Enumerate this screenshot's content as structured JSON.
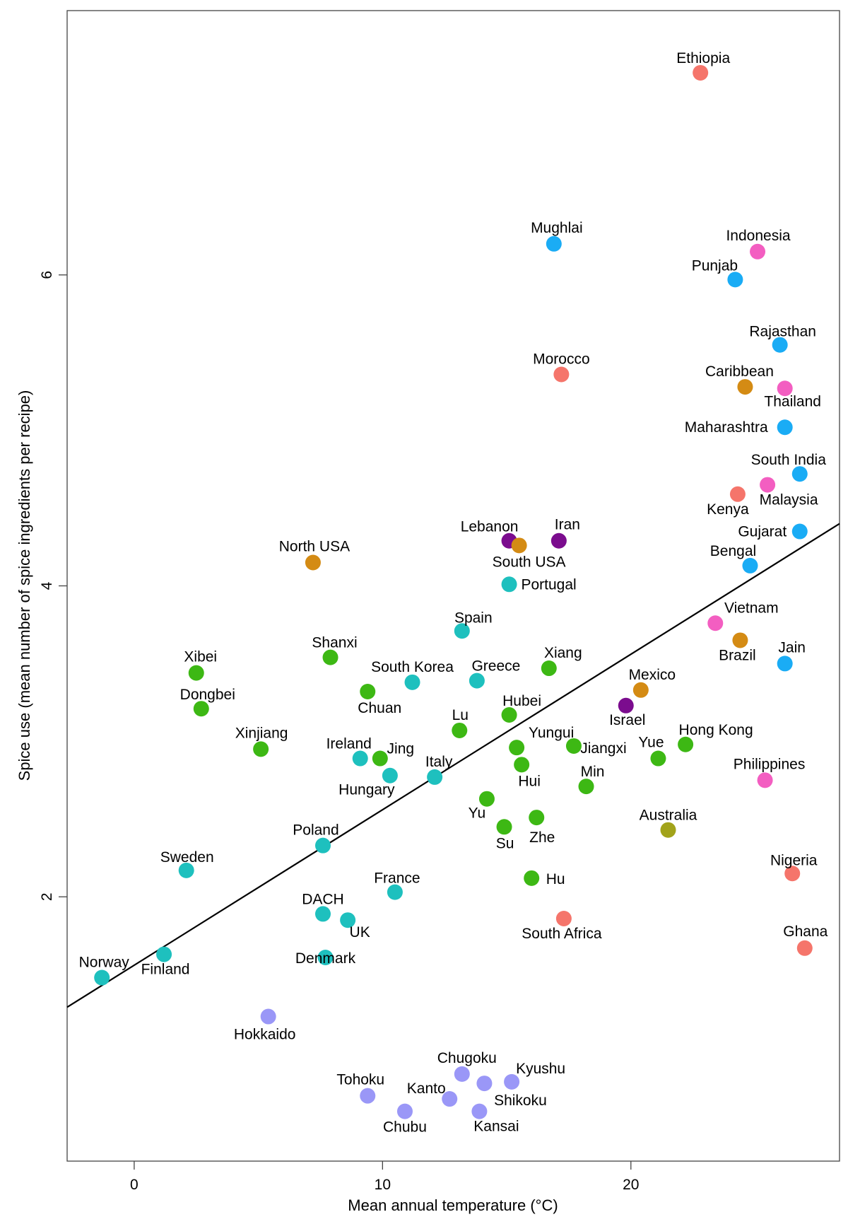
{
  "chart_data": {
    "type": "scatter",
    "title": "",
    "xlabel": "Mean annual temperature (°C)",
    "ylabel": "Spice use (mean number of spice ingredients per recipe)",
    "xlim": [
      -2.7,
      28.4
    ],
    "ylim": [
      0.3,
      7.7
    ],
    "xticks": [
      0,
      10,
      20
    ],
    "yticks": [
      2,
      4,
      6
    ],
    "grid": false,
    "legend": "none",
    "regression_line": {
      "x": [
        -2.7,
        28.4
      ],
      "y": [
        1.29,
        4.4
      ]
    },
    "colors": {
      "african": "#F5756B",
      "south_asian": "#1AACF5",
      "southeast_asian": "#F35EC1",
      "american": "#D48B14",
      "middle_eastern": "#7B0C8E",
      "european": "#1EC0BE",
      "chinese": "#3DB814",
      "japanese": "#9A97F7",
      "oceanian": "#A2A31A"
    },
    "points": [
      {
        "name": "Ethiopia",
        "x": 22.8,
        "y": 7.3,
        "color": "african"
      },
      {
        "name": "Mughlai",
        "x": 16.9,
        "y": 6.2,
        "color": "south_asian"
      },
      {
        "name": "Indonesia",
        "x": 25.1,
        "y": 6.15,
        "color": "southeast_asian"
      },
      {
        "name": "Punjab",
        "x": 24.2,
        "y": 5.97,
        "color": "south_asian"
      },
      {
        "name": "Rajasthan",
        "x": 26.0,
        "y": 5.55,
        "color": "south_asian"
      },
      {
        "name": "Morocco",
        "x": 17.2,
        "y": 5.36,
        "color": "african"
      },
      {
        "name": "Caribbean",
        "x": 24.6,
        "y": 5.28,
        "color": "american"
      },
      {
        "name": "Thailand",
        "x": 26.2,
        "y": 5.27,
        "color": "southeast_asian"
      },
      {
        "name": "Maharashtra",
        "x": 26.2,
        "y": 5.02,
        "color": "south_asian"
      },
      {
        "name": "South India",
        "x": 26.8,
        "y": 4.72,
        "color": "south_asian"
      },
      {
        "name": "Malaysia",
        "x": 25.5,
        "y": 4.65,
        "color": "southeast_asian"
      },
      {
        "name": "Kenya",
        "x": 24.3,
        "y": 4.59,
        "color": "african"
      },
      {
        "name": "Gujarat",
        "x": 26.8,
        "y": 4.35,
        "color": "south_asian"
      },
      {
        "name": "Lebanon",
        "x": 15.1,
        "y": 4.29,
        "color": "middle_eastern"
      },
      {
        "name": "Iran",
        "x": 17.1,
        "y": 4.29,
        "color": "middle_eastern"
      },
      {
        "name": "South USA",
        "x": 15.5,
        "y": 4.26,
        "color": "american"
      },
      {
        "name": "North USA",
        "x": 7.2,
        "y": 4.15,
        "color": "american"
      },
      {
        "name": "Bengal",
        "x": 24.8,
        "y": 4.13,
        "color": "south_asian"
      },
      {
        "name": "Portugal",
        "x": 15.1,
        "y": 4.01,
        "color": "european"
      },
      {
        "name": "Vietnam",
        "x": 23.4,
        "y": 3.76,
        "color": "southeast_asian"
      },
      {
        "name": "Spain",
        "x": 13.2,
        "y": 3.71,
        "color": "european"
      },
      {
        "name": "Brazil",
        "x": 24.4,
        "y": 3.65,
        "color": "american"
      },
      {
        "name": "Shanxi",
        "x": 7.9,
        "y": 3.54,
        "color": "chinese"
      },
      {
        "name": "Jain",
        "x": 26.2,
        "y": 3.5,
        "color": "south_asian"
      },
      {
        "name": "Xiang",
        "x": 16.7,
        "y": 3.47,
        "color": "chinese"
      },
      {
        "name": "Xibei",
        "x": 2.5,
        "y": 3.44,
        "color": "chinese"
      },
      {
        "name": "Greece",
        "x": 13.8,
        "y": 3.39,
        "color": "european"
      },
      {
        "name": "South Korea",
        "x": 11.2,
        "y": 3.38,
        "color": "european"
      },
      {
        "name": "Mexico",
        "x": 20.4,
        "y": 3.33,
        "color": "american"
      },
      {
        "name": "Chuan",
        "x": 9.4,
        "y": 3.32,
        "color": "chinese"
      },
      {
        "name": "Israel",
        "x": 19.8,
        "y": 3.23,
        "color": "middle_eastern"
      },
      {
        "name": "Dongbei",
        "x": 2.7,
        "y": 3.21,
        "color": "chinese"
      },
      {
        "name": "Hubei",
        "x": 15.1,
        "y": 3.17,
        "color": "chinese"
      },
      {
        "name": "Lu",
        "x": 13.1,
        "y": 3.07,
        "color": "chinese"
      },
      {
        "name": "Hong Kong",
        "x": 22.2,
        "y": 2.98,
        "color": "chinese"
      },
      {
        "name": "Jiangxi",
        "x": 17.7,
        "y": 2.97,
        "color": "chinese"
      },
      {
        "name": "Yungui",
        "x": 15.4,
        "y": 2.96,
        "color": "chinese"
      },
      {
        "name": "Xinjiang",
        "x": 5.1,
        "y": 2.95,
        "color": "chinese"
      },
      {
        "name": "Ireland",
        "x": 9.1,
        "y": 2.89,
        "color": "european"
      },
      {
        "name": "Jing",
        "x": 9.9,
        "y": 2.89,
        "color": "chinese"
      },
      {
        "name": "Yue",
        "x": 21.1,
        "y": 2.89,
        "color": "chinese"
      },
      {
        "name": "Hui",
        "x": 15.6,
        "y": 2.85,
        "color": "chinese"
      },
      {
        "name": "Hungary",
        "x": 10.3,
        "y": 2.78,
        "color": "european"
      },
      {
        "name": "Italy",
        "x": 12.1,
        "y": 2.77,
        "color": "european"
      },
      {
        "name": "Philippines",
        "x": 25.4,
        "y": 2.75,
        "color": "southeast_asian"
      },
      {
        "name": "Min",
        "x": 18.2,
        "y": 2.71,
        "color": "chinese"
      },
      {
        "name": "Yu",
        "x": 14.2,
        "y": 2.63,
        "color": "chinese"
      },
      {
        "name": "Zhe",
        "x": 16.2,
        "y": 2.51,
        "color": "chinese"
      },
      {
        "name": "Su",
        "x": 14.9,
        "y": 2.45,
        "color": "chinese"
      },
      {
        "name": "Australia",
        "x": 21.5,
        "y": 2.43,
        "color": "oceanian"
      },
      {
        "name": "Poland",
        "x": 7.6,
        "y": 2.33,
        "color": "european"
      },
      {
        "name": "Sweden",
        "x": 2.1,
        "y": 2.17,
        "color": "european"
      },
      {
        "name": "Nigeria",
        "x": 26.5,
        "y": 2.15,
        "color": "african"
      },
      {
        "name": "Hu",
        "x": 16.0,
        "y": 2.12,
        "color": "chinese"
      },
      {
        "name": "France",
        "x": 10.5,
        "y": 2.03,
        "color": "european"
      },
      {
        "name": "DACH",
        "x": 7.6,
        "y": 1.89,
        "color": "european"
      },
      {
        "name": "UK",
        "x": 8.6,
        "y": 1.85,
        "color": "european"
      },
      {
        "name": "South Africa",
        "x": 17.3,
        "y": 1.86,
        "color": "african"
      },
      {
        "name": "Ghana",
        "x": 27.0,
        "y": 1.67,
        "color": "african"
      },
      {
        "name": "Finland",
        "x": 1.2,
        "y": 1.63,
        "color": "european"
      },
      {
        "name": "Denmark",
        "x": 7.7,
        "y": 1.61,
        "color": "european"
      },
      {
        "name": "Norway",
        "x": -1.3,
        "y": 1.48,
        "color": "european"
      },
      {
        "name": "Hokkaido",
        "x": 5.4,
        "y": 1.23,
        "color": "japanese"
      },
      {
        "name": "Chugoku",
        "x": 13.2,
        "y": 0.86,
        "color": "japanese"
      },
      {
        "name": "Shikoku",
        "x": 14.1,
        "y": 0.8,
        "color": "japanese"
      },
      {
        "name": "Kyushu",
        "x": 15.2,
        "y": 0.81,
        "color": "japanese"
      },
      {
        "name": "Tohoku",
        "x": 9.4,
        "y": 0.72,
        "color": "japanese"
      },
      {
        "name": "Kanto",
        "x": 12.7,
        "y": 0.7,
        "color": "japanese"
      },
      {
        "name": "Chubu",
        "x": 10.9,
        "y": 0.62,
        "color": "japanese"
      },
      {
        "name": "Kansai",
        "x": 13.9,
        "y": 0.62,
        "color": "japanese"
      }
    ]
  }
}
